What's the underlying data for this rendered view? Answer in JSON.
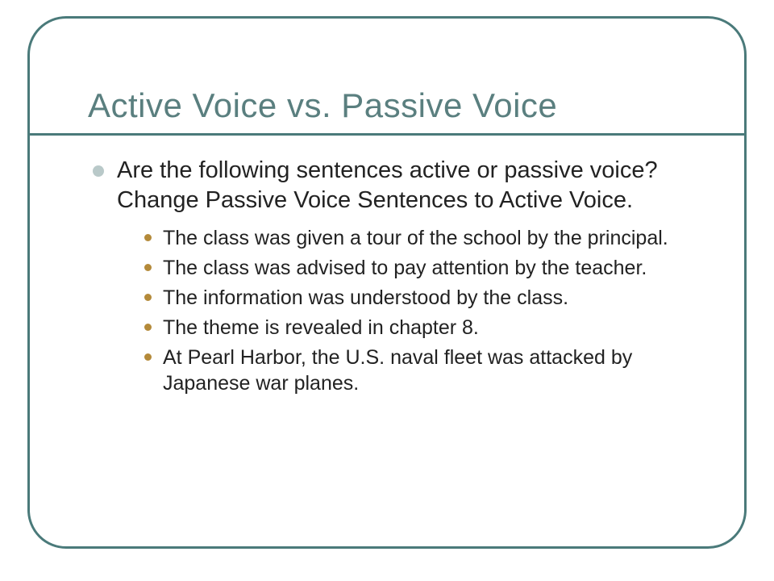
{
  "title": "Active Voice vs. Passive Voice",
  "colors": {
    "frame_border": "#4a7a7a",
    "title_text": "#5a7f7f",
    "title_rule": "#4a7a7a",
    "bullet_lvl1": "#b9c9c9",
    "bullet_lvl2": "#b48a3a",
    "body_text": "#222222",
    "background": "#ffffff"
  },
  "typography": {
    "title_fontsize": 42,
    "lvl1_fontsize": 29,
    "lvl2_fontsize": 25,
    "font_family": "Verdana"
  },
  "intro": "Are the following sentences active or passive voice?  Change Passive Voice Sentences to Active Voice.",
  "items": [
    "The class was given a tour of the school by the principal.",
    "The class was advised to pay attention by the teacher.",
    "The information was understood by the class.",
    "The theme is revealed in chapter 8.",
    "At Pearl Harbor, the U.S. naval fleet was attacked by Japanese war planes."
  ]
}
